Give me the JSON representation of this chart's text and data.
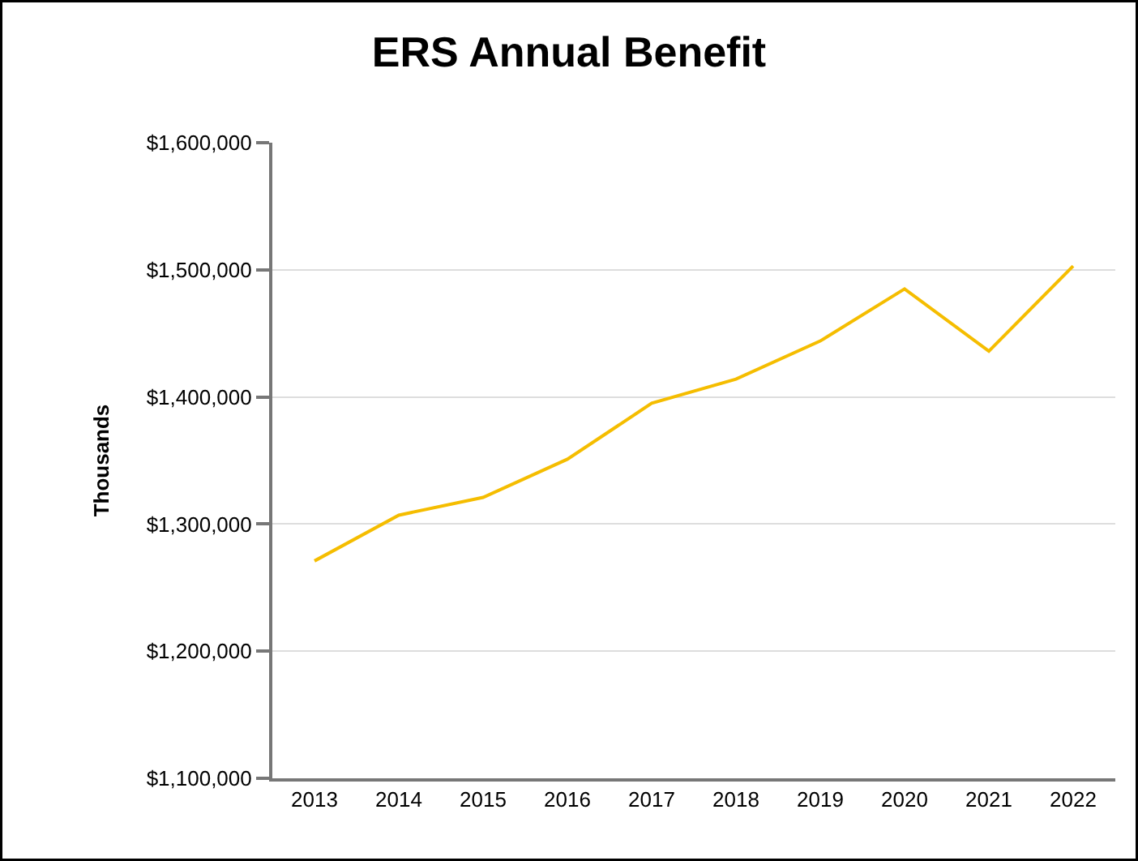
{
  "chart_data": {
    "type": "line",
    "title": "ERS Annual Benefit",
    "ylabel": "Thousands",
    "categories": [
      "2013",
      "2014",
      "2015",
      "2016",
      "2017",
      "2018",
      "2019",
      "2020",
      "2021",
      "2022"
    ],
    "series": [
      {
        "color": "#f5bd00",
        "values": [
          1271000,
          1307000,
          1321000,
          1351000,
          1395000,
          1414000,
          1444000,
          1485000,
          1436000,
          1503000
        ]
      }
    ],
    "ylim": [
      1100000,
      1600000
    ],
    "yticks": [
      {
        "value": 1100000,
        "label": "$1,100,000"
      },
      {
        "value": 1200000,
        "label": "$1,200,000"
      },
      {
        "value": 1300000,
        "label": "$1,300,000"
      },
      {
        "value": 1400000,
        "label": "$1,400,000"
      },
      {
        "value": 1500000,
        "label": "$1,500,000"
      },
      {
        "value": 1600000,
        "label": "$1,600,000"
      }
    ],
    "grid": "y",
    "marker": "none",
    "line_style": "solid"
  }
}
